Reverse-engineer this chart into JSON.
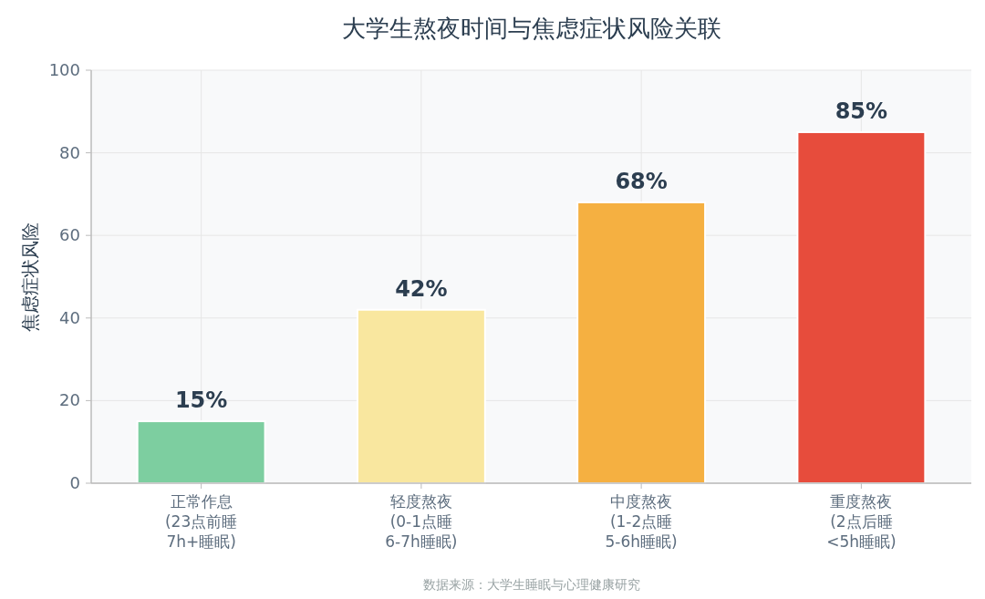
{
  "chart_data": {
    "type": "bar",
    "title": "大学生熬夜时间与焦虑症状风险关联",
    "ylabel": "焦虑症状风险",
    "categories": [
      "正常作息\n(23点前睡\n7h+睡眠)",
      "轻度熬夜\n(0-1点睡\n6-7h睡眠)",
      "中度熬夜\n(1-2点睡\n5-6h睡眠)",
      "重度熬夜\n(2点后睡\n<5h睡眠)"
    ],
    "values": [
      15,
      42,
      68,
      85
    ],
    "colors": [
      "#7dcea0",
      "#f9e79f",
      "#f5b041",
      "#e74c3c"
    ],
    "value_labels": [
      "15%",
      "42%",
      "68%",
      "85%"
    ],
    "ylim": [
      0,
      100
    ],
    "yticks": [
      0,
      20,
      40,
      60,
      80,
      100
    ],
    "grid": true,
    "annotations": [
      "数据来源：大学生睡眠与心理健康研究"
    ]
  }
}
